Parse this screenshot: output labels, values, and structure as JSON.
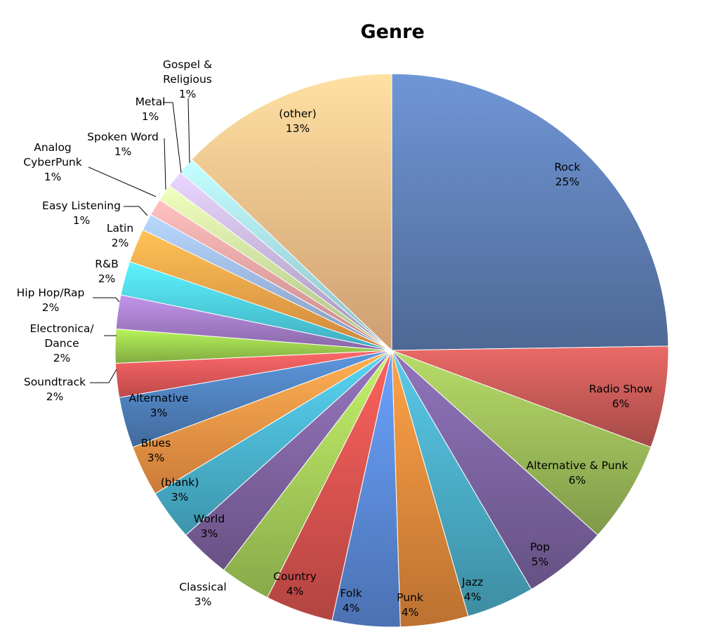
{
  "chart_data": {
    "type": "pie",
    "title": "Genre",
    "slices": [
      {
        "name": "Rock",
        "value": 25,
        "label": "25%",
        "color": "#5f7fb5"
      },
      {
        "name": "Radio Show",
        "value": 6,
        "label": "6%",
        "color": "#c75a57"
      },
      {
        "name": "Alternative & Punk",
        "value": 6,
        "label": "6%",
        "color": "#9bbb59"
      },
      {
        "name": "Pop",
        "value": 5,
        "label": "5%",
        "color": "#7b63a0"
      },
      {
        "name": "Jazz",
        "value": 4,
        "label": "4%",
        "color": "#4bacc6"
      },
      {
        "name": "Punk",
        "value": 4,
        "label": "4%",
        "color": "#e48a3c"
      },
      {
        "name": "Folk",
        "value": 4,
        "label": "4%",
        "color": "#5b8ad8"
      },
      {
        "name": "Country",
        "value": 4,
        "label": "4%",
        "color": "#d9534f"
      },
      {
        "name": "Classical",
        "value": 3,
        "label": "3%",
        "color": "#a6ce5a"
      },
      {
        "name": "World",
        "value": 3,
        "label": "3%",
        "color": "#8064a2"
      },
      {
        "name": "(blank)",
        "value": 3,
        "label": "3%",
        "color": "#4bb5d0"
      },
      {
        "name": "Blues",
        "value": 3,
        "label": "3%",
        "color": "#f79646"
      },
      {
        "name": "Alternative",
        "value": 3,
        "label": "3%",
        "color": "#4f81bd"
      },
      {
        "name": "Soundtrack",
        "value": 2,
        "label": "2%",
        "color": "#e8595a"
      },
      {
        "name": "Electronica/ Dance",
        "value": 2,
        "label": "2%",
        "color": "#9ccf4e"
      },
      {
        "name": "Hip Hop/Rap",
        "value": 2,
        "label": "2%",
        "color": "#a57dc9"
      },
      {
        "name": "R&B",
        "value": 2,
        "label": "2%",
        "color": "#4ecfe6"
      },
      {
        "name": "Latin",
        "value": 2,
        "label": "2%",
        "color": "#fba449"
      },
      {
        "name": "Easy Listening",
        "value": 1,
        "label": "1%",
        "color": "#9db8e8"
      },
      {
        "name": "Analog CyberPunk",
        "value": 1,
        "label": "1%",
        "color": "#f2a3a3"
      },
      {
        "name": "Spoken Word",
        "value": 1,
        "label": "1%",
        "color": "#cde8a0"
      },
      {
        "name": "Metal",
        "value": 1,
        "label": "1%",
        "color": "#c6b5de"
      },
      {
        "name": "Gospel & Religious",
        "value": 1,
        "label": "1%",
        "color": "#a7e6f3"
      },
      {
        "name": "(other)",
        "value": 13,
        "label": "13%",
        "color": "#fbbf8a"
      }
    ],
    "legend": "none",
    "data_labels": "category name and percentage"
  }
}
